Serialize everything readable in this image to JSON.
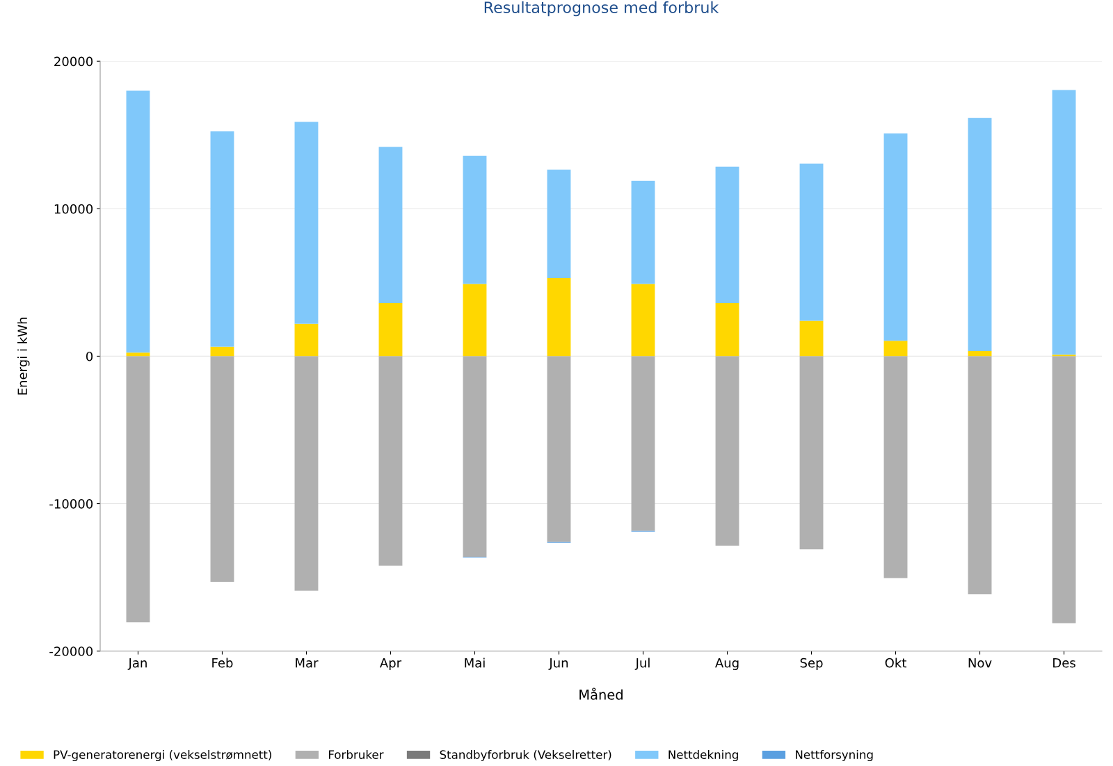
{
  "chart_data": {
    "type": "bar",
    "stacked": true,
    "title": "Resultatprognose med forbruk",
    "xlabel": "Måned",
    "ylabel": "Energi i kWh",
    "categories": [
      "Jan",
      "Feb",
      "Mar",
      "Apr",
      "Mai",
      "Jun",
      "Jul",
      "Aug",
      "Sep",
      "Okt",
      "Nov",
      "Des"
    ],
    "series": [
      {
        "name": "PV-generatorenergi (vekselstrømnett)",
        "color": "#ffd700",
        "values": [
          250,
          650,
          2200,
          3600,
          4900,
          5300,
          4900,
          3600,
          2400,
          1050,
          350,
          100
        ]
      },
      {
        "name": "Forbruker",
        "color": "#b0b0b0",
        "values": [
          -18050,
          -15300,
          -15900,
          -14200,
          -13600,
          -12600,
          -11850,
          -12850,
          -13100,
          -15050,
          -16150,
          -18100
        ]
      },
      {
        "name": "Standbyforbruk (Vekselretter)",
        "color": "#7a7a7a",
        "values": [
          0,
          0,
          0,
          0,
          0,
          0,
          0,
          0,
          0,
          0,
          0,
          0
        ]
      },
      {
        "name": "Nettdekning",
        "color": "#80c8fa",
        "values": [
          17750,
          14600,
          13700,
          10600,
          8700,
          7350,
          7000,
          9250,
          10650,
          14050,
          15800,
          17950
        ]
      },
      {
        "name": "Nettforsyning",
        "color": "#5a9fe0",
        "values": [
          0,
          0,
          0,
          0,
          -50,
          -50,
          -50,
          0,
          0,
          0,
          0,
          0
        ]
      }
    ],
    "ylim": [
      -20000,
      20000
    ],
    "yticks": [
      -20000,
      -10000,
      0,
      10000,
      20000
    ],
    "grid": "y",
    "legend": "bottom"
  }
}
